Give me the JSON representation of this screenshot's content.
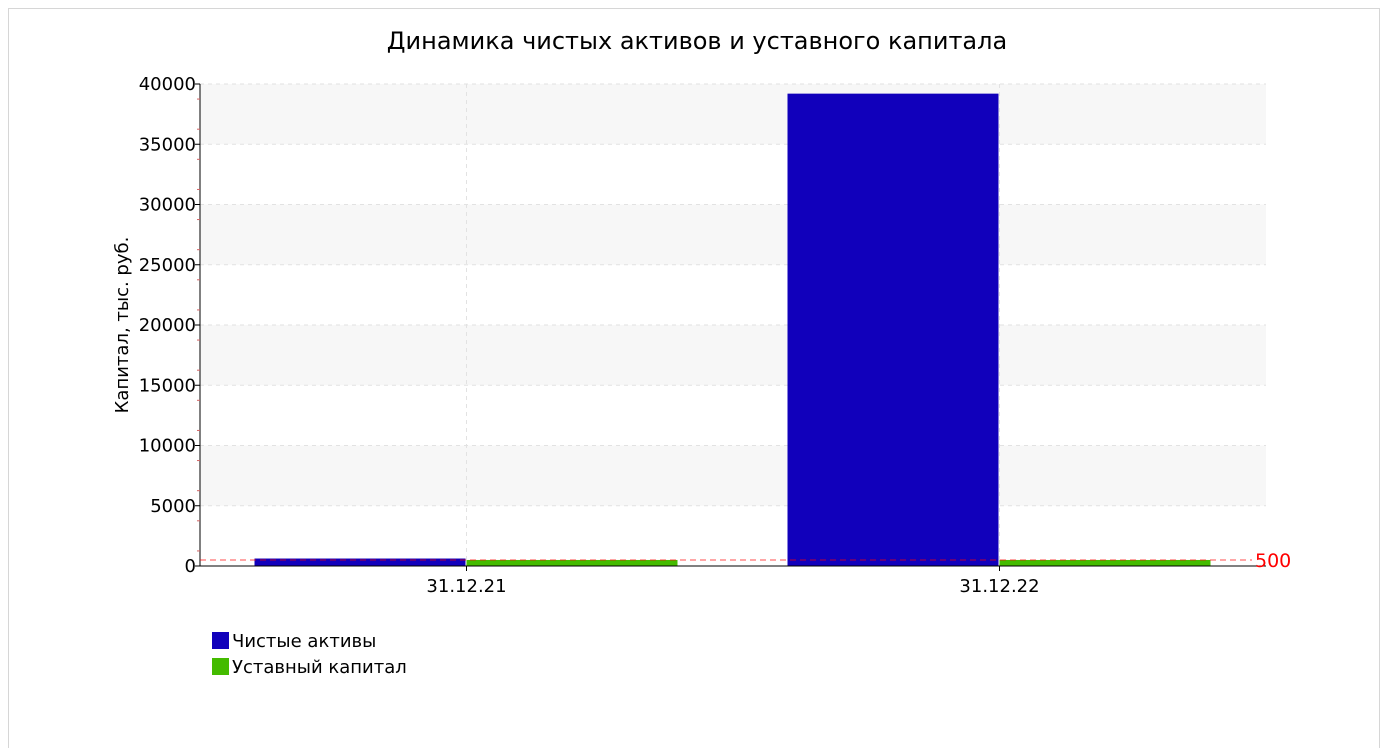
{
  "chart_data": {
    "type": "bar",
    "title": "Динамика чистых активов и уставного капитала",
    "ylabel": "Капитал, тыс. руб.",
    "xlabel": "",
    "categories": [
      "31.12.21",
      "31.12.22"
    ],
    "series": [
      {
        "name": "Чистые активы",
        "color": "#1100BB",
        "values": [
          620,
          39200
        ]
      },
      {
        "name": "Уставный капитал",
        "color": "#44BB00",
        "values": [
          500,
          500
        ]
      }
    ],
    "ylim": [
      0,
      40000
    ],
    "yticks": [
      "0",
      "5000",
      "10000",
      "15000",
      "20000",
      "25000",
      "30000",
      "35000",
      "40000"
    ],
    "reference_line": {
      "value": 500,
      "label": "500",
      "color": "#ff0000"
    },
    "grid": true,
    "legend_position": "bottom-left"
  }
}
